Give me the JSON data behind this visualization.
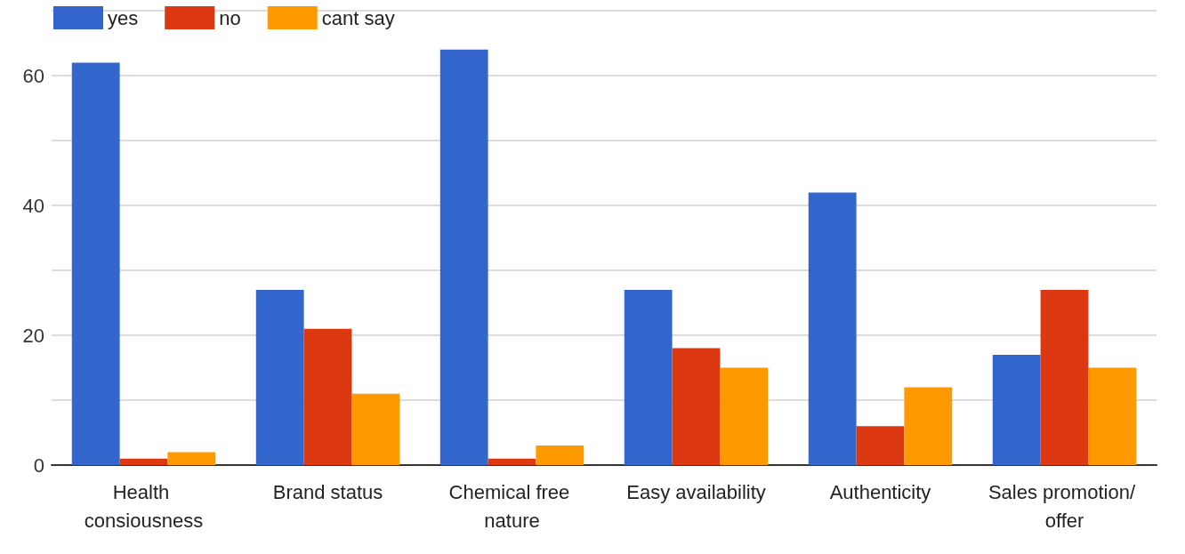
{
  "chart_data": {
    "type": "bar",
    "categories": [
      "Health consiousness",
      "Brand status",
      "Chemical free nature",
      "Easy availability",
      "Authenticity",
      "Sales promotion/ offer"
    ],
    "series": [
      {
        "name": "yes",
        "color": "#3366cc",
        "values": [
          62,
          27,
          64,
          27,
          42,
          17
        ]
      },
      {
        "name": "no",
        "color": "#dc3912",
        "values": [
          1,
          21,
          1,
          18,
          6,
          27
        ]
      },
      {
        "name": "cant say",
        "color": "#ff9900",
        "values": [
          2,
          11,
          3,
          15,
          12,
          15
        ]
      }
    ],
    "ylim": [
      0,
      70
    ],
    "yticks": [
      0,
      {
        "value": 10,
        "label": null
      },
      20,
      {
        "value": 30,
        "label": null
      },
      40,
      {
        "value": 50,
        "label": null
      },
      60,
      {
        "value": 70,
        "label": null
      }
    ],
    "grid": "y",
    "legend": "top left"
  }
}
